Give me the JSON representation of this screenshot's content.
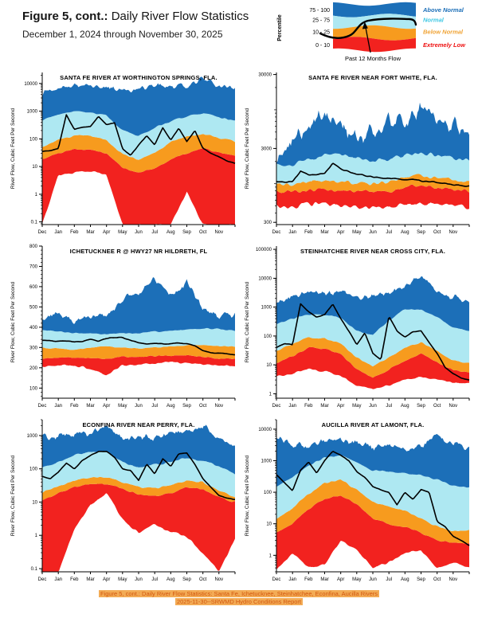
{
  "header": {
    "figure_label": "Figure 5, cont.:",
    "title": "Daily River Flow Statistics",
    "subtitle": "December 1, 2024 through November 30, 2025"
  },
  "legend": {
    "axis_label": "Percentile",
    "flow_label": "Past 12 Months Flow",
    "rows": [
      {
        "range": "75 - 100",
        "label": "Above Normal",
        "color": "#1c6fb8",
        "label_color": "#1c6fb8"
      },
      {
        "range": "25 - 75",
        "label": "Normal",
        "color": "#aee8f2",
        "label_color": "#3fc8e4"
      },
      {
        "range": "10 - 25",
        "label": "Below Normal",
        "color": "#f79b1e",
        "label_color": "#f0a437"
      },
      {
        "range": "0 - 10",
        "label": "Extremely Low",
        "color": "#f2221f",
        "label_color": "#ee1111"
      }
    ]
  },
  "months": [
    "Dec",
    "Jan",
    "Feb",
    "Mar",
    "Apr",
    "May",
    "Jun",
    "Jul",
    "Aug",
    "Sep",
    "Oct",
    "Nov"
  ],
  "ylabel": "River Flow, Cubic Feet Per Second",
  "colors": {
    "above_normal": "#1c6fb8",
    "normal": "#aee8f2",
    "below_normal": "#f79b1e",
    "extremely_low": "#f2221f",
    "flow_line": "#000000",
    "caption_bg": "#f3ab55",
    "caption_text": "#d2570f"
  },
  "chart_data": [
    {
      "type": "area",
      "title": "SANTA FE RIVER AT WORTHINGTON SPRINGS, FLA.",
      "scale": "log",
      "ylim": [
        0.08,
        25000
      ],
      "yticks": [
        0.1,
        1,
        10,
        100,
        1000,
        10000
      ],
      "ytick_labels": [
        "0.1",
        "1",
        "10",
        "100",
        "1000",
        "10000"
      ],
      "bands": {
        "p0": [
          0.08,
          5,
          6,
          7,
          5,
          0.08,
          0.08,
          0.08,
          0.08,
          1.2,
          0.08,
          0.08,
          0.08
        ],
        "p10": [
          18,
          30,
          42,
          42,
          30,
          9,
          6,
          9,
          18,
          30,
          45,
          32,
          25
        ],
        "p25": [
          50,
          90,
          130,
          130,
          90,
          28,
          18,
          30,
          80,
          120,
          150,
          110,
          80
        ],
        "p75": [
          450,
          750,
          1000,
          900,
          700,
          200,
          130,
          250,
          450,
          650,
          850,
          600,
          450
        ],
        "p100": [
          4000,
          6000,
          9000,
          8000,
          7000,
          5000,
          6000,
          9000,
          7000,
          8000,
          15000,
          9000,
          6000
        ]
      },
      "flow": [
        35,
        38,
        45,
        750,
        220,
        260,
        280,
        650,
        320,
        380,
        45,
        25,
        60,
        130,
        60,
        250,
        90,
        240,
        80,
        200,
        45,
        30,
        22,
        16,
        13
      ]
    },
    {
      "type": "area",
      "title": "SANTA FE RIVER NEAR FORT WHITE, FLA.",
      "scale": "log",
      "ylim": [
        280,
        32000
      ],
      "yticks": [
        300,
        3000,
        30000
      ],
      "ytick_labels": [
        "300",
        "3000",
        "30000"
      ],
      "bands": {
        "p0": [
          500,
          490,
          510,
          520,
          500,
          480,
          470,
          480,
          520,
          560,
          540,
          520,
          500
        ],
        "p10": [
          780,
          780,
          800,
          820,
          820,
          800,
          780,
          800,
          870,
          950,
          900,
          850,
          820
        ],
        "p25": [
          1000,
          1000,
          1050,
          1100,
          1100,
          1050,
          1000,
          1050,
          1200,
          1300,
          1250,
          1100,
          1050
        ],
        "p75": [
          1700,
          1800,
          2100,
          2400,
          2500,
          2200,
          2000,
          2200,
          2300,
          2600,
          2400,
          2200,
          2000
        ],
        "p100": [
          2600,
          3500,
          6000,
          9000,
          6500,
          4200,
          5000,
          7500,
          6500,
          11000,
          7500,
          6500,
          5000
        ]
      },
      "flow": [
        1060,
        1050,
        1050,
        1500,
        1320,
        1330,
        1400,
        1850,
        1600,
        1450,
        1350,
        1300,
        1250,
        1200,
        1180,
        1150,
        1120,
        1150,
        1090,
        1070,
        1040,
        1010,
        980,
        950,
        920
      ]
    },
    {
      "type": "area",
      "title": "ICHETUCKNEE R @ HWY27 NR HILDRETH, FL",
      "scale": "linear",
      "ylim": [
        50,
        800
      ],
      "yticks": [
        100,
        200,
        300,
        400,
        500,
        600,
        700,
        800
      ],
      "ytick_labels": [
        "100",
        "200",
        "300",
        "400",
        "500",
        "600",
        "700",
        "800"
      ],
      "bands": {
        "p0": [
          205,
          215,
          212,
          195,
          165,
          210,
          215,
          222,
          228,
          225,
          218,
          212,
          208
        ],
        "p10": [
          245,
          252,
          250,
          248,
          245,
          255,
          252,
          258,
          260,
          262,
          252,
          246,
          244
        ],
        "p25": [
          300,
          295,
          290,
          298,
          305,
          300,
          295,
          300,
          305,
          310,
          312,
          308,
          305
        ],
        "p75": [
          390,
          380,
          370,
          370,
          365,
          370,
          370,
          380,
          380,
          390,
          395,
          390,
          385
        ],
        "p100": [
          440,
          470,
          430,
          450,
          460,
          540,
          570,
          640,
          560,
          620,
          490,
          450,
          470
        ]
      },
      "flow": [
        335,
        333,
        330,
        332,
        328,
        330,
        340,
        332,
        345,
        350,
        348,
        335,
        322,
        318,
        320,
        318,
        320,
        322,
        318,
        310,
        285,
        275,
        272,
        268,
        265
      ]
    },
    {
      "type": "area",
      "title": "STEINHATCHEE RIVER NEAR CROSS CITY, FLA.",
      "scale": "log",
      "ylim": [
        0.7,
        130000
      ],
      "yticks": [
        1,
        10,
        100,
        1000,
        10000,
        100000
      ],
      "ytick_labels": [
        "1",
        "10",
        "100",
        "1000",
        "10000",
        "100000"
      ],
      "bands": {
        "p0": [
          4,
          5,
          7,
          6,
          4,
          2,
          1.4,
          2,
          3,
          4,
          3,
          2.5,
          2.2
        ],
        "p10": [
          11,
          20,
          40,
          35,
          24,
          7,
          3.5,
          7,
          14,
          25,
          12,
          6.5,
          5.5
        ],
        "p25": [
          30,
          55,
          90,
          80,
          55,
          18,
          9,
          18,
          40,
          60,
          30,
          14,
          11
        ],
        "p75": [
          280,
          380,
          550,
          550,
          420,
          150,
          110,
          350,
          850,
          800,
          450,
          200,
          150
        ],
        "p100": [
          1600,
          2200,
          3200,
          3200,
          3000,
          2000,
          2400,
          3000,
          5000,
          12000,
          3200,
          2200,
          1800
        ]
      },
      "flow": [
        40,
        55,
        50,
        1300,
        700,
        450,
        550,
        1300,
        400,
        150,
        50,
        130,
        25,
        15,
        480,
        150,
        90,
        140,
        150,
        60,
        25,
        8,
        5,
        3.5,
        3
      ]
    },
    {
      "type": "area",
      "title": "ECONFINA RIVER NEAR PERRY, FLA.",
      "scale": "log",
      "ylim": [
        0.08,
        3000
      ],
      "yticks": [
        0.1,
        1,
        10,
        100,
        1000
      ],
      "ytick_labels": [
        "0.1",
        "1",
        "10",
        "100",
        "1000"
      ],
      "bands": {
        "p0": [
          0.08,
          0.08,
          1.5,
          8,
          18,
          3,
          1.2,
          2,
          1.3,
          0.9,
          0.3,
          0.08,
          0.8
        ],
        "p10": [
          12,
          18,
          28,
          35,
          35,
          25,
          17,
          15,
          19,
          28,
          24,
          14,
          10
        ],
        "p25": [
          20,
          30,
          45,
          55,
          55,
          40,
          28,
          26,
          33,
          45,
          40,
          22,
          14
        ],
        "p75": [
          110,
          160,
          260,
          320,
          330,
          160,
          110,
          130,
          160,
          220,
          180,
          120,
          70
        ],
        "p100": [
          900,
          1000,
          1100,
          1300,
          2200,
          900,
          800,
          900,
          1100,
          1400,
          1800,
          900,
          400
        ]
      },
      "flow": [
        60,
        50,
        80,
        150,
        100,
        180,
        250,
        330,
        340,
        220,
        100,
        90,
        45,
        140,
        70,
        200,
        120,
        280,
        300,
        140,
        50,
        28,
        16,
        13,
        12
      ]
    },
    {
      "type": "area",
      "title": "AUCILLA RIVER AT LAMONT, FLA.",
      "scale": "log",
      "ylim": [
        0.3,
        20000
      ],
      "yticks": [
        1,
        10,
        100,
        1000,
        10000
      ],
      "ytick_labels": [
        "1",
        "10",
        "100",
        "1000",
        "10000"
      ],
      "bands": {
        "p0": [
          0.35,
          1.2,
          0.4,
          0.5,
          3,
          1.5,
          0.4,
          0.6,
          1.2,
          1.4,
          0.4,
          0.6,
          0.4
        ],
        "p10": [
          5,
          10,
          30,
          60,
          80,
          40,
          15,
          10,
          8,
          5,
          3,
          2.5,
          2.5
        ],
        "p25": [
          15,
          30,
          90,
          200,
          250,
          120,
          50,
          35,
          25,
          15,
          8,
          6,
          6
        ],
        "p75": [
          150,
          300,
          700,
          1300,
          1500,
          900,
          500,
          450,
          400,
          350,
          250,
          160,
          140
        ],
        "p100": [
          6000,
          3200,
          2600,
          4200,
          5000,
          4000,
          2600,
          3000,
          2200,
          2600,
          6500,
          3200,
          2600
        ]
      },
      "flow": [
        360,
        200,
        110,
        500,
        900,
        400,
        1000,
        2000,
        1500,
        1000,
        450,
        300,
        150,
        120,
        100,
        40,
        100,
        60,
        120,
        100,
        12,
        8,
        4,
        3,
        2
      ]
    }
  ],
  "caption": {
    "line1": "Figure 5, cont.: Daily River Flow Statistics: Santa Fe, Ichetucknee, Steinhatchee, Econfina, Aucilla Rivers",
    "line2": "2025-11-30--SRWMD Hydro Conditions Report"
  }
}
